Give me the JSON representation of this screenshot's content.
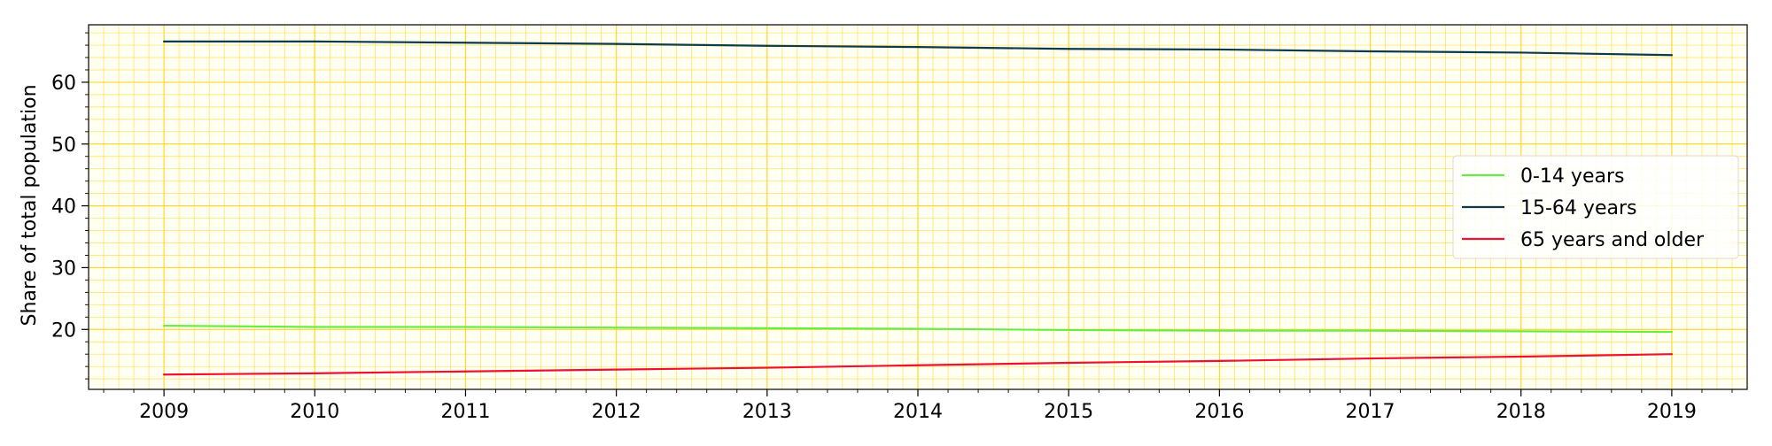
{
  "chart_data": {
    "type": "line",
    "title": "",
    "xlabel": "",
    "ylabel": "Share of total population",
    "x": [
      2009,
      2010,
      2011,
      2012,
      2013,
      2014,
      2015,
      2016,
      2017,
      2018,
      2019
    ],
    "xlim": [
      2008.5,
      2019.5
    ],
    "ylim": [
      10.3,
      69.3
    ],
    "xticks": [
      "2009",
      "2010",
      "2011",
      "2012",
      "2013",
      "2014",
      "2015",
      "2016",
      "2017",
      "2018",
      "2019"
    ],
    "yticks": [
      "20",
      "30",
      "40",
      "50",
      "60"
    ],
    "grid": true,
    "grid_minor": true,
    "legend_position": "center-right",
    "series": [
      {
        "name": "0-14 years",
        "color": "#66ee44",
        "values": [
          20.6,
          20.4,
          20.4,
          20.3,
          20.2,
          20.1,
          19.9,
          19.8,
          19.8,
          19.7,
          19.6
        ]
      },
      {
        "name": "15-64 years",
        "color": "#0d3b47",
        "values": [
          66.6,
          66.6,
          66.4,
          66.2,
          65.9,
          65.7,
          65.4,
          65.3,
          65.0,
          64.8,
          64.4
        ]
      },
      {
        "name": "65 years and older",
        "color": "#ee1133",
        "values": [
          12.7,
          12.9,
          13.2,
          13.5,
          13.8,
          14.2,
          14.6,
          14.9,
          15.3,
          15.6,
          16.0
        ]
      }
    ],
    "colors": {
      "background": "#fffff2",
      "grid": "#ffd21f",
      "axes": "#000000"
    }
  }
}
